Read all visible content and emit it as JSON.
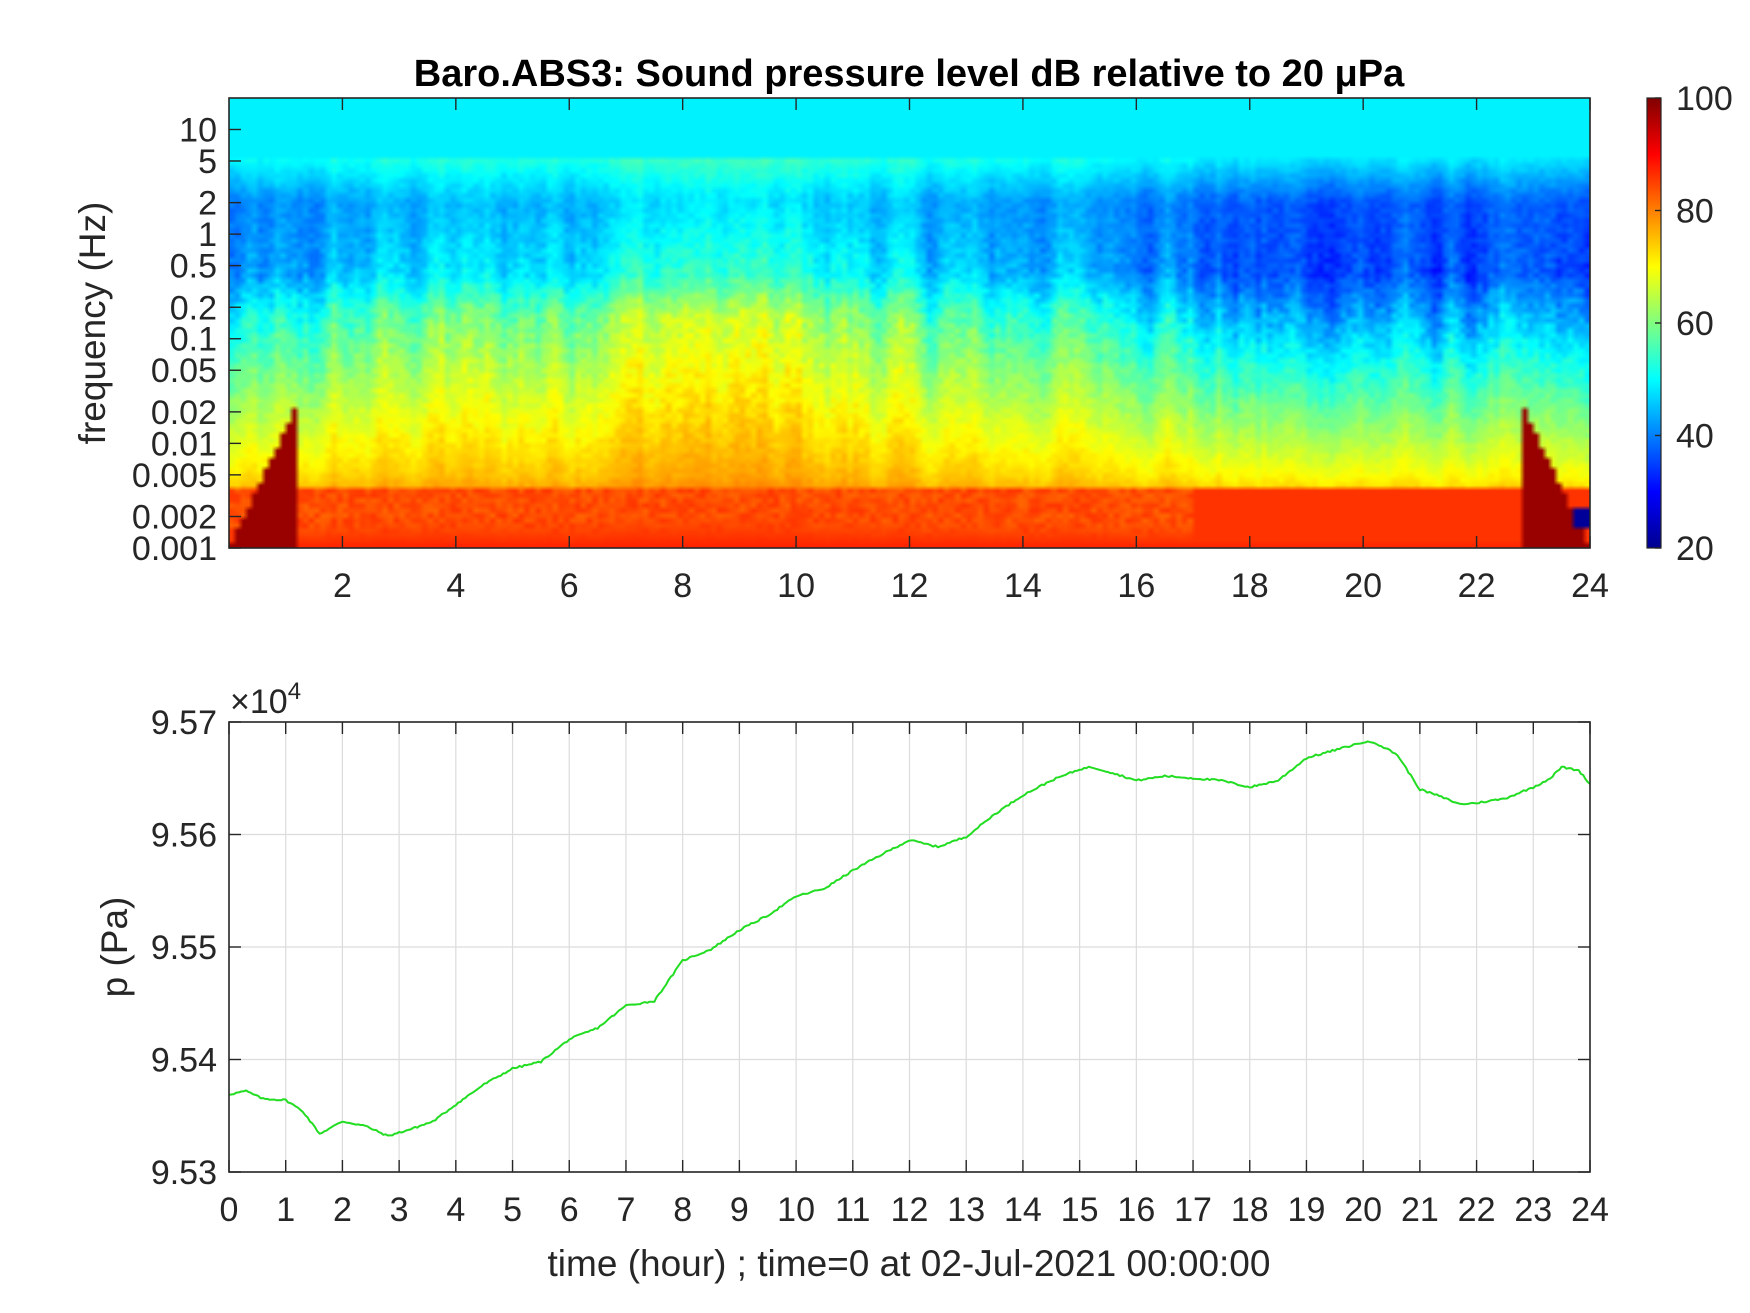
{
  "spectrogram": {
    "title": "Baro.ABS3: Sound pressure level dB relative to 20 μPa",
    "ylabel": "frequency (Hz)",
    "x_ticks": [
      "2",
      "4",
      "6",
      "8",
      "10",
      "12",
      "14",
      "16",
      "18",
      "20",
      "22",
      "24"
    ],
    "y_ticks": [
      "10",
      "5",
      "2",
      "1",
      "0.5",
      "0.2",
      "0.1",
      "0.05",
      "0.02",
      "0.01",
      "0.005",
      "0.002",
      "0.001"
    ],
    "colorbar_ticks": [
      "100",
      "80",
      "60",
      "40",
      "20"
    ]
  },
  "pressure": {
    "exponent_base": "×10",
    "exponent_power": "4",
    "ylabel": "p (Pa)",
    "xlabel": "time (hour) ; time=0 at 02-Jul-2021 00:00:00",
    "y_ticks": [
      "9.57",
      "9.56",
      "9.55",
      "9.54",
      "9.53"
    ],
    "x_ticks": [
      "0",
      "1",
      "2",
      "3",
      "4",
      "5",
      "6",
      "7",
      "8",
      "9",
      "10",
      "11",
      "12",
      "13",
      "14",
      "15",
      "16",
      "17",
      "18",
      "19",
      "20",
      "21",
      "22",
      "23",
      "24"
    ]
  },
  "colors": {
    "line": "#22dd22",
    "axis": "#262626",
    "grid": "#dcdcdc"
  },
  "chart_data": [
    {
      "type": "heatmap",
      "title": "Baro.ABS3: Sound pressure level dB relative to 20 μPa",
      "xlabel": "",
      "ylabel": "frequency (Hz)",
      "xlim": [
        0,
        24
      ],
      "ylim": [
        0.001,
        20
      ],
      "yscale": "log",
      "colormap": "jet",
      "clim": [
        20,
        100
      ],
      "approx_levels_db": {
        "above_5Hz": 50,
        "0.5_to_2Hz": 35,
        "0.05_to_0.2Hz": 52,
        "0.005_to_0.02Hz": 70,
        "0.001_to_0.002Hz": 88
      }
    },
    {
      "type": "line",
      "xlabel": "time (hour) ; time=0 at 02-Jul-2021 00:00:00",
      "ylabel": "p (Pa)",
      "xlim": [
        0,
        24
      ],
      "ylim": [
        95300,
        95700
      ],
      "grid": true,
      "series": [
        {
          "x": [
            0,
            0.3,
            0.6,
            1.0,
            1.3,
            1.6,
            2.0,
            2.4,
            2.8,
            3.2,
            3.6,
            4.0,
            4.5,
            5.0,
            5.5,
            6.0,
            6.5,
            7.0,
            7.5,
            8.0,
            8.5,
            9.0,
            9.5,
            10.0,
            10.5,
            11.0,
            11.5,
            12.0,
            12.5,
            13.0,
            13.5,
            14.0,
            14.5,
            15.0,
            15.2,
            15.5,
            16.0,
            16.5,
            17.0,
            17.5,
            18.0,
            18.5,
            19.0,
            19.5,
            20.0,
            20.2,
            20.6,
            21.0,
            21.3,
            21.7,
            22.0,
            22.5,
            23.0,
            23.3,
            23.5,
            23.8,
            24.0
          ],
          "y": [
            95369,
            95372,
            95365,
            95364,
            95354,
            95334,
            95345,
            95341,
            95332,
            95338,
            95345,
            95360,
            95378,
            95392,
            95398,
            95418,
            95428,
            95448,
            95452,
            95488,
            95498,
            95515,
            95528,
            95545,
            95552,
            95568,
            95582,
            95595,
            95589,
            95598,
            95618,
            95635,
            95648,
            95658,
            95660,
            95656,
            95648,
            95652,
            95650,
            95648,
            95642,
            95648,
            95668,
            95675,
            95682,
            95682,
            95671,
            95640,
            95635,
            95627,
            95628,
            95632,
            95642,
            95650,
            95660,
            95657,
            95645
          ]
        }
      ]
    }
  ]
}
